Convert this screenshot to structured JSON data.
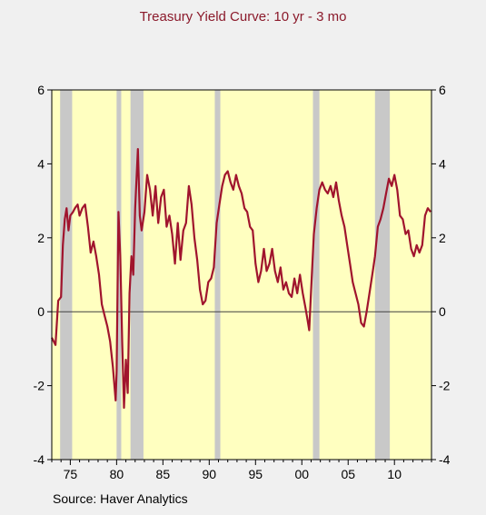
{
  "chart_data": {
    "type": "line",
    "title": "Treasury Yield Curve:  10 yr - 3 mo",
    "source": "Source: Haver Analytics",
    "xlabel": "",
    "ylabel": "",
    "xlim": [
      1973.0,
      2014.0
    ],
    "ylim": [
      -4,
      6
    ],
    "yticks": [
      -4,
      -2,
      0,
      2,
      4,
      6
    ],
    "xticks": [
      {
        "value": 1975,
        "label": "75"
      },
      {
        "value": 1980,
        "label": "80"
      },
      {
        "value": 1985,
        "label": "85"
      },
      {
        "value": 1990,
        "label": "90"
      },
      {
        "value": 1995,
        "label": "95"
      },
      {
        "value": 2000,
        "label": "00"
      },
      {
        "value": 2005,
        "label": "05"
      },
      {
        "value": 2010,
        "label": "10"
      }
    ],
    "recessions": [
      [
        1973.9,
        1975.2
      ],
      [
        1980.0,
        1980.5
      ],
      [
        1981.5,
        1982.9
      ],
      [
        1990.6,
        1991.2
      ],
      [
        2001.2,
        2001.9
      ],
      [
        2007.9,
        2009.5
      ]
    ],
    "colors": {
      "background": "#f0f0f0",
      "plot_area": "#ffffc0",
      "recession": "#c8c8c8",
      "series_line": "#a0142d",
      "zero_line": "#404040",
      "title": "#8b1a2b"
    },
    "series": [
      {
        "name": "",
        "x": [
          1973.0,
          1973.4,
          1973.7,
          1974.0,
          1974.2,
          1974.4,
          1974.6,
          1974.8,
          1975.0,
          1975.3,
          1975.5,
          1975.8,
          1976.0,
          1976.3,
          1976.6,
          1976.9,
          1977.2,
          1977.5,
          1977.8,
          1978.1,
          1978.4,
          1978.7,
          1979.0,
          1979.3,
          1979.6,
          1979.9,
          1980.0,
          1980.2,
          1980.4,
          1980.6,
          1980.8,
          1981.0,
          1981.2,
          1981.4,
          1981.6,
          1981.8,
          1982.0,
          1982.3,
          1982.5,
          1982.7,
          1983.0,
          1983.3,
          1983.6,
          1983.9,
          1984.2,
          1984.5,
          1984.8,
          1985.1,
          1985.4,
          1985.7,
          1986.0,
          1986.3,
          1986.6,
          1986.9,
          1987.2,
          1987.5,
          1987.8,
          1988.1,
          1988.4,
          1988.7,
          1989.0,
          1989.3,
          1989.6,
          1989.9,
          1990.2,
          1990.5,
          1990.8,
          1991.1,
          1991.4,
          1991.7,
          1992.0,
          1992.3,
          1992.6,
          1992.9,
          1993.2,
          1993.5,
          1993.8,
          1994.1,
          1994.4,
          1994.7,
          1995.0,
          1995.3,
          1995.6,
          1995.9,
          1996.2,
          1996.5,
          1996.8,
          1997.1,
          1997.4,
          1997.7,
          1998.0,
          1998.3,
          1998.6,
          1998.9,
          1999.2,
          1999.5,
          1999.8,
          2000.1,
          2000.4,
          2000.6,
          2000.8,
          2001.0,
          2001.3,
          2001.6,
          2001.9,
          2002.2,
          2002.5,
          2002.8,
          2003.1,
          2003.4,
          2003.7,
          2004.0,
          2004.3,
          2004.6,
          2004.9,
          2005.2,
          2005.5,
          2005.8,
          2006.1,
          2006.4,
          2006.7,
          2007.0,
          2007.3,
          2007.6,
          2007.9,
          2008.2,
          2008.5,
          2008.8,
          2009.1,
          2009.4,
          2009.7,
          2010.0,
          2010.3,
          2010.6,
          2010.9,
          2011.2,
          2011.5,
          2011.8,
          2012.1,
          2012.4,
          2012.7,
          2013.0,
          2013.3,
          2013.6,
          2013.9
        ],
        "values": [
          -0.7,
          -0.9,
          0.3,
          0.4,
          1.8,
          2.5,
          2.8,
          2.2,
          2.6,
          2.7,
          2.8,
          2.9,
          2.6,
          2.8,
          2.9,
          2.3,
          1.6,
          1.9,
          1.5,
          1.0,
          0.2,
          -0.1,
          -0.4,
          -0.8,
          -1.5,
          -2.4,
          -1.6,
          2.7,
          1.5,
          -0.8,
          -2.6,
          -1.3,
          -2.2,
          0.5,
          1.5,
          1.0,
          2.8,
          4.4,
          2.6,
          2.2,
          2.7,
          3.7,
          3.3,
          2.6,
          3.4,
          2.4,
          3.1,
          3.3,
          2.3,
          2.6,
          2.1,
          1.3,
          2.4,
          1.4,
          2.2,
          2.4,
          3.4,
          2.9,
          2.0,
          1.4,
          0.6,
          0.2,
          0.3,
          0.8,
          0.9,
          1.2,
          2.4,
          2.9,
          3.4,
          3.7,
          3.8,
          3.5,
          3.3,
          3.7,
          3.4,
          3.2,
          2.8,
          2.7,
          2.3,
          2.2,
          1.3,
          0.8,
          1.1,
          1.7,
          1.1,
          1.3,
          1.7,
          1.1,
          0.8,
          1.2,
          0.6,
          0.8,
          0.5,
          0.4,
          0.9,
          0.5,
          1.0,
          0.5,
          0.1,
          -0.2,
          -0.5,
          0.6,
          2.1,
          2.8,
          3.3,
          3.5,
          3.3,
          3.2,
          3.4,
          3.1,
          3.5,
          3.0,
          2.6,
          2.3,
          1.8,
          1.3,
          0.8,
          0.5,
          0.2,
          -0.3,
          -0.4,
          0.0,
          0.5,
          1.0,
          1.5,
          2.3,
          2.5,
          2.8,
          3.2,
          3.6,
          3.4,
          3.7,
          3.3,
          2.6,
          2.5,
          2.1,
          2.2,
          1.7,
          1.5,
          1.8,
          1.6,
          1.8,
          2.6,
          2.8,
          2.7
        ]
      }
    ]
  }
}
